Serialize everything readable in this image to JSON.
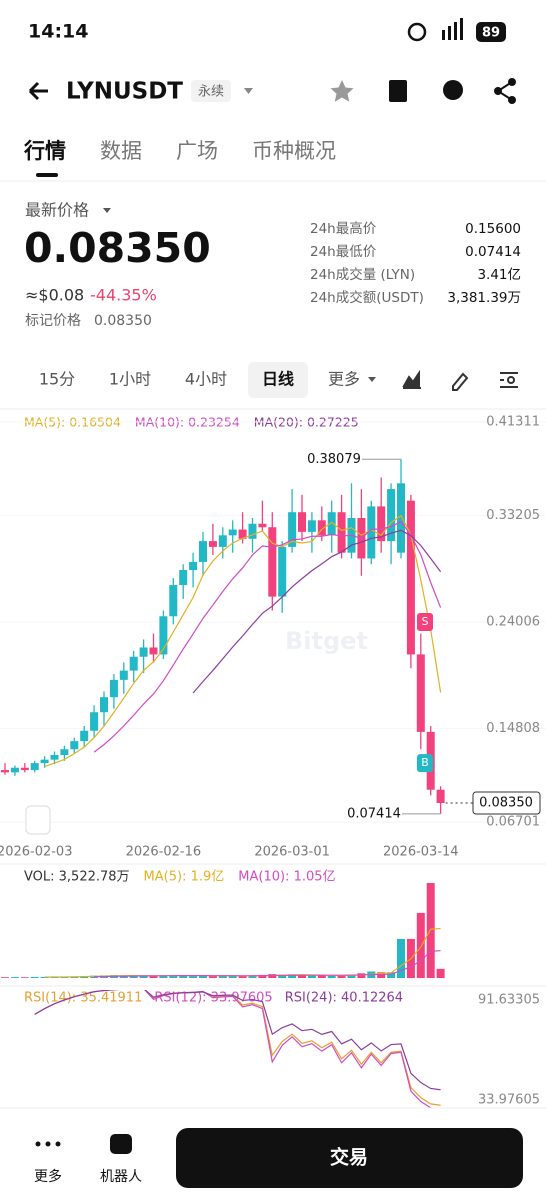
{
  "status": {
    "time": "14:14",
    "battery": "89"
  },
  "header": {
    "symbol": "LYNUSDT",
    "tag": "永续"
  },
  "tabs": [
    "行情",
    "数据",
    "广场",
    "币种概况"
  ],
  "price": {
    "label": "最新价格",
    "last": "0.08350",
    "usd": "≈$0.08",
    "change": "-44.35%",
    "mark_label": "标记价格",
    "mark": "0.08350"
  },
  "stats": [
    [
      "24h最高价",
      "0.15600"
    ],
    [
      "24h最低价",
      "0.07414"
    ],
    [
      "24h成交量 (LYN)",
      "3.41亿"
    ],
    [
      "24h成交额(USDT)",
      "3,381.39万"
    ]
  ],
  "intervals": [
    "15分",
    "1小时",
    "4小时",
    "日线",
    "更多"
  ],
  "chart_data": [
    {
      "type": "candlestick",
      "up_color": "#22b8c6",
      "down_color": "#f2417c",
      "indicators": [
        {
          "label": "MA(5): 0.16504",
          "color": "#e2b020"
        },
        {
          "label": "MA(10): 0.23254",
          "color": "#d24cc4"
        },
        {
          "label": "MA(20): 0.27225",
          "color": "#8c3c9e"
        }
      ],
      "categories": [
        null,
        null,
        null,
        "2026-02-03",
        null,
        null,
        null,
        null,
        null,
        null,
        null,
        null,
        null,
        null,
        null,
        null,
        "2026-02-16",
        null,
        null,
        null,
        null,
        null,
        null,
        null,
        null,
        null,
        null,
        null,
        null,
        "2026-03-01",
        null,
        null,
        null,
        null,
        null,
        null,
        null,
        null,
        null,
        null,
        null,
        null,
        "2026-03-14",
        null,
        null
      ],
      "candles": [
        [
          0.112,
          0.118,
          0.108,
          0.11
        ],
        [
          0.11,
          0.116,
          0.107,
          0.114
        ],
        [
          0.114,
          0.118,
          0.11,
          0.112
        ],
        [
          0.112,
          0.12,
          0.11,
          0.118
        ],
        [
          0.118,
          0.124,
          0.114,
          0.121
        ],
        [
          0.121,
          0.128,
          0.117,
          0.125
        ],
        [
          0.125,
          0.133,
          0.12,
          0.13
        ],
        [
          0.13,
          0.14,
          0.126,
          0.137
        ],
        [
          0.137,
          0.15,
          0.132,
          0.146
        ],
        [
          0.146,
          0.168,
          0.14,
          0.162
        ],
        [
          0.162,
          0.18,
          0.15,
          0.175
        ],
        [
          0.175,
          0.195,
          0.165,
          0.19
        ],
        [
          0.19,
          0.205,
          0.178,
          0.198
        ],
        [
          0.198,
          0.215,
          0.188,
          0.21
        ],
        [
          0.21,
          0.225,
          0.196,
          0.218
        ],
        [
          0.218,
          0.23,
          0.205,
          0.212
        ],
        [
          0.212,
          0.25,
          0.208,
          0.245
        ],
        [
          0.245,
          0.278,
          0.238,
          0.272
        ],
        [
          0.272,
          0.29,
          0.26,
          0.285
        ],
        [
          0.285,
          0.3,
          0.27,
          0.292
        ],
        [
          0.292,
          0.318,
          0.28,
          0.31
        ],
        [
          0.31,
          0.325,
          0.298,
          0.305
        ],
        [
          0.305,
          0.322,
          0.295,
          0.315
        ],
        [
          0.315,
          0.328,
          0.3,
          0.32
        ],
        [
          0.32,
          0.335,
          0.308,
          0.312
        ],
        [
          0.312,
          0.33,
          0.3,
          0.325
        ],
        [
          0.325,
          0.345,
          0.318,
          0.322
        ],
        [
          0.322,
          0.335,
          0.25,
          0.262
        ],
        [
          0.262,
          0.31,
          0.248,
          0.305
        ],
        [
          0.305,
          0.355,
          0.3,
          0.335
        ],
        [
          0.335,
          0.35,
          0.31,
          0.318
        ],
        [
          0.318,
          0.335,
          0.3,
          0.328
        ],
        [
          0.328,
          0.34,
          0.31,
          0.315
        ],
        [
          0.315,
          0.345,
          0.3,
          0.335
        ],
        [
          0.335,
          0.35,
          0.295,
          0.3
        ],
        [
          0.3,
          0.36,
          0.295,
          0.33
        ],
        [
          0.33,
          0.355,
          0.28,
          0.295
        ],
        [
          0.295,
          0.345,
          0.29,
          0.34
        ],
        [
          0.34,
          0.365,
          0.3,
          0.31
        ],
        [
          0.31,
          0.36,
          0.29,
          0.355
        ],
        [
          0.3,
          0.38079,
          0.295,
          0.36
        ],
        [
          0.345,
          0.35,
          0.2,
          0.212
        ],
        [
          0.212,
          0.23,
          0.13,
          0.145
        ],
        [
          0.145,
          0.15,
          0.09,
          0.095
        ],
        [
          0.095,
          0.098,
          0.07414,
          0.0835
        ]
      ],
      "ylim": [
        0.0515,
        0.4234
      ],
      "yticks": [
        0.41311,
        0.33205,
        0.24006,
        0.14808,
        0.06701
      ],
      "high_label": 0.38079,
      "low_label": 0.07414,
      "last": {
        "value": 0.0835,
        "label": "0.08350"
      },
      "markers": [
        "S",
        "B"
      ],
      "watermark": "Bitget"
    },
    {
      "type": "bar",
      "legend": [
        {
          "label": "VOL: 3,522.78万",
          "color": "#333333"
        },
        {
          "label": "MA(5): 1.9亿",
          "color": "#e2b020"
        },
        {
          "label": "MA(10): 1.05亿",
          "color": "#d24cc4"
        }
      ],
      "values": [
        300,
        350,
        280,
        400,
        420,
        500,
        450,
        600,
        700,
        900,
        1000,
        1100,
        900,
        800,
        950,
        700,
        1000,
        1100,
        900,
        800,
        1000,
        700,
        800,
        900,
        700,
        800,
        1200,
        1500,
        1300,
        1400,
        1100,
        900,
        1000,
        800,
        900,
        1300,
        1800,
        2500,
        2200,
        2200,
        15000,
        15000,
        25000,
        36477,
        3522.78
      ]
    },
    {
      "type": "line",
      "legend": [
        {
          "label": "RSI(14): 35.41911",
          "color": "#e8a030",
          "period": 14
        },
        {
          "label": "RSI(12): 33.97605",
          "color": "#d24cc4",
          "period": 12
        },
        {
          "label": "RSI(24): 40.12264",
          "color": "#8c3c9e",
          "period": 24
        }
      ],
      "ylim": [
        33.97605,
        91.63305
      ],
      "yticks": [
        91.63305,
        33.97605
      ]
    }
  ],
  "footer": {
    "more": "更多",
    "bot": "机器人",
    "trade": "交易"
  }
}
